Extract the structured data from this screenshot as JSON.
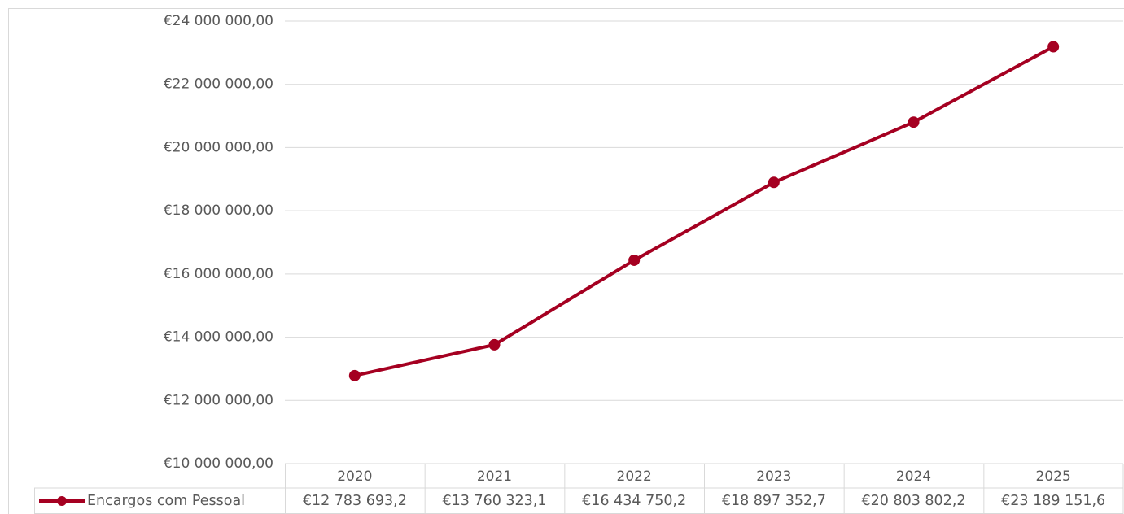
{
  "chart_data": {
    "type": "line",
    "categories": [
      "2020",
      "2021",
      "2022",
      "2023",
      "2024",
      "2025"
    ],
    "series": [
      {
        "name": "Encargos com Pessoal",
        "color": "#a50021",
        "values": [
          12783693.2,
          13760323.1,
          16434750.2,
          18897352.7,
          20803802.2,
          23189151.6
        ],
        "value_labels": [
          "€12 783 693,2",
          "€13 760 323,1",
          "€16 434 750,2",
          "€18 897 352,7",
          "€20 803 802,2",
          "€23 189 151,6"
        ]
      }
    ],
    "ylim": [
      10000000,
      24000000
    ],
    "yticks": [
      {
        "value": 10000000,
        "label": "€10 000 000,00"
      },
      {
        "value": 12000000,
        "label": "€12 000 000,00"
      },
      {
        "value": 14000000,
        "label": "€14 000 000,00"
      },
      {
        "value": 16000000,
        "label": "€16 000 000,00"
      },
      {
        "value": 18000000,
        "label": "€18 000 000,00"
      },
      {
        "value": 20000000,
        "label": "€20 000 000,00"
      },
      {
        "value": 22000000,
        "label": "€22 000 000,00"
      },
      {
        "value": 24000000,
        "label": "€24 000 000,00"
      }
    ],
    "grid": true,
    "data_table": true
  }
}
